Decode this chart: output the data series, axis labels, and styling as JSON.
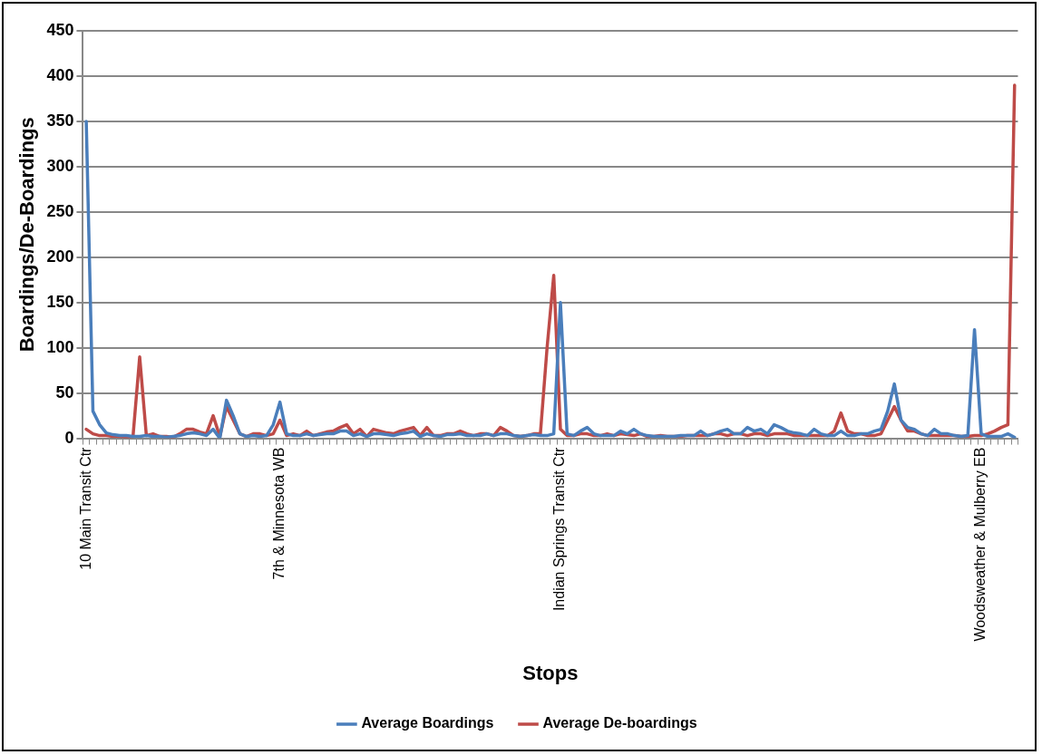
{
  "chart_data": {
    "type": "line",
    "xlabel": "Stops",
    "ylabel": "Boardings/De-Boardings",
    "categories": [
      "10 Main Transit Ctr",
      null,
      null,
      null,
      null,
      null,
      null,
      null,
      null,
      null,
      null,
      null,
      null,
      null,
      null,
      null,
      null,
      null,
      null,
      null,
      null,
      null,
      null,
      null,
      null,
      null,
      null,
      null,
      null,
      "7th & Minnesota WB",
      null,
      null,
      null,
      null,
      null,
      null,
      null,
      null,
      null,
      null,
      null,
      null,
      null,
      null,
      null,
      null,
      null,
      null,
      null,
      null,
      null,
      null,
      null,
      null,
      null,
      null,
      null,
      null,
      null,
      null,
      null,
      null,
      null,
      null,
      null,
      null,
      null,
      null,
      null,
      null,
      null,
      "Indian Springs Transit Ctr",
      null,
      null,
      null,
      null,
      null,
      null,
      null,
      null,
      null,
      null,
      null,
      null,
      null,
      null,
      null,
      null,
      null,
      null,
      null,
      null,
      null,
      null,
      null,
      null,
      null,
      null,
      null,
      null,
      null,
      null,
      null,
      null,
      null,
      null,
      null,
      null,
      null,
      null,
      null,
      null,
      null,
      null,
      null,
      null,
      null,
      null,
      null,
      null,
      null,
      null,
      null,
      null,
      null,
      null,
      null,
      null,
      null,
      null,
      null,
      null,
      null,
      null,
      "Woodsweather & Mulberry EB",
      null,
      null,
      null,
      null,
      null
    ],
    "series": [
      {
        "name": "Average Boardings",
        "color": "#4a7ebb",
        "values": [
          350,
          30,
          15,
          6,
          4,
          3,
          3,
          2,
          2,
          3,
          2,
          2,
          1,
          2,
          3,
          5,
          6,
          5,
          3,
          10,
          0,
          42,
          25,
          5,
          2,
          3,
          2,
          3,
          15,
          40,
          5,
          3,
          3,
          5,
          3,
          4,
          5,
          5,
          8,
          8,
          3,
          5,
          2,
          5,
          5,
          4,
          3,
          5,
          6,
          8,
          2,
          5,
          3,
          2,
          4,
          4,
          5,
          3,
          3,
          3,
          5,
          3,
          5,
          5,
          3,
          2,
          3,
          4,
          3,
          3,
          5,
          150,
          5,
          3,
          8,
          12,
          5,
          3,
          3,
          3,
          8,
          5,
          10,
          5,
          3,
          2,
          2,
          2,
          2,
          3,
          3,
          3,
          8,
          3,
          5,
          8,
          10,
          5,
          5,
          12,
          8,
          10,
          5,
          15,
          12,
          8,
          6,
          5,
          3,
          10,
          5,
          3,
          3,
          8,
          3,
          3,
          5,
          5,
          8,
          10,
          30,
          60,
          20,
          12,
          10,
          5,
          3,
          10,
          5,
          5,
          3,
          2,
          3,
          120,
          5,
          2,
          2,
          2,
          5,
          1
        ]
      },
      {
        "name": "Average De-boardings",
        "color": "#be4b48",
        "values": [
          10,
          5,
          3,
          3,
          2,
          2,
          1,
          2,
          90,
          3,
          5,
          2,
          2,
          1,
          5,
          10,
          10,
          7,
          5,
          25,
          2,
          35,
          20,
          5,
          2,
          5,
          5,
          3,
          5,
          20,
          3,
          5,
          3,
          8,
          3,
          5,
          7,
          8,
          12,
          15,
          5,
          10,
          2,
          10,
          8,
          6,
          5,
          8,
          10,
          12,
          3,
          12,
          3,
          3,
          5,
          5,
          8,
          5,
          3,
          5,
          5,
          3,
          12,
          8,
          3,
          2,
          3,
          5,
          5,
          100,
          180,
          10,
          3,
          3,
          5,
          5,
          3,
          3,
          5,
          3,
          5,
          4,
          3,
          5,
          2,
          2,
          3,
          2,
          2,
          2,
          3,
          3,
          3,
          3,
          5,
          5,
          3,
          5,
          5,
          3,
          5,
          5,
          3,
          5,
          5,
          5,
          3,
          3,
          3,
          3,
          3,
          3,
          8,
          28,
          8,
          5,
          5,
          3,
          3,
          5,
          20,
          35,
          20,
          8,
          8,
          5,
          3,
          3,
          3,
          3,
          3,
          2,
          2,
          3,
          3,
          5,
          8,
          12,
          15,
          390
        ]
      }
    ],
    "ylim": [
      0,
      450
    ],
    "yticks": [
      0,
      50,
      100,
      150,
      200,
      250,
      300,
      350,
      400,
      450
    ],
    "grid": "y",
    "legend": "bottom",
    "marker": "none",
    "line_style": "solid"
  }
}
